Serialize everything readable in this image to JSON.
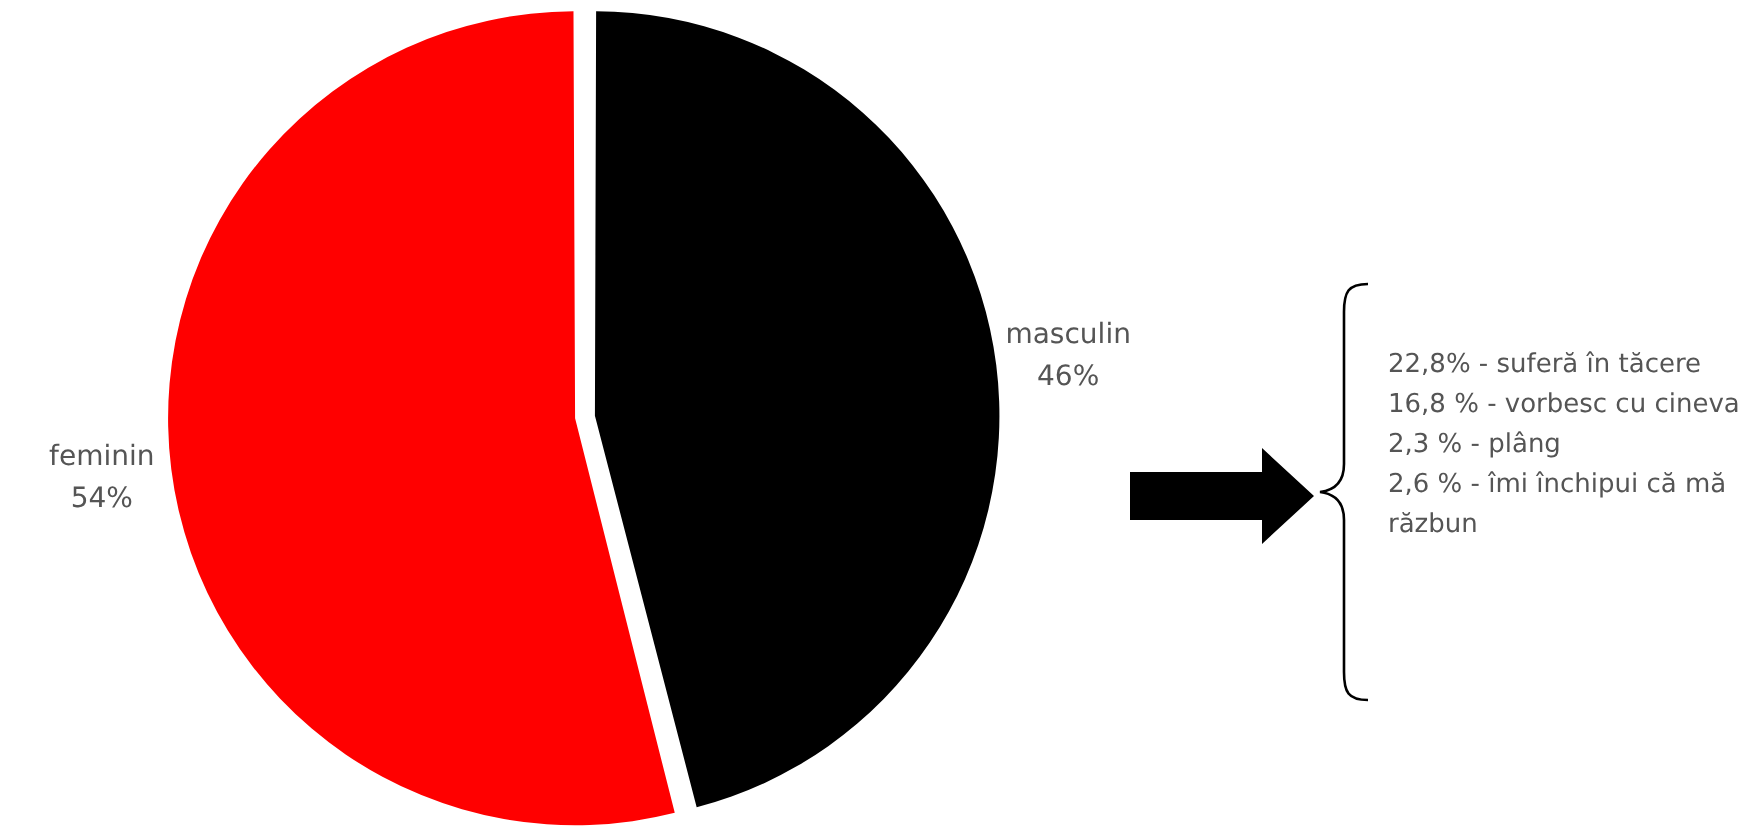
{
  "chart_data": {
    "type": "pie",
    "categories": [
      "masculin",
      "feminin"
    ],
    "values": [
      46,
      54
    ],
    "colors": [
      "#000000",
      "#ff0000"
    ],
    "value_labels": [
      "46%",
      "54%"
    ],
    "legend": false,
    "annotations": [
      "22,8% - suferă în tăcere",
      "16,8 % - vorbesc cu cineva",
      "2,3 % - plâng",
      "2,6 % - îmi închipui că mă răzbun"
    ]
  }
}
